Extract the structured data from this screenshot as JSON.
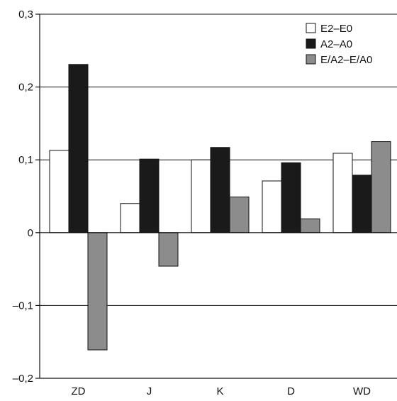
{
  "chart_data": {
    "type": "bar",
    "title": "",
    "xlabel": "",
    "ylabel": "",
    "categories": [
      "ZD",
      "J",
      "K",
      "D",
      "WD"
    ],
    "series": [
      {
        "name": "E2–E0",
        "color": "#ffffff",
        "values": [
          0.113,
          0.04,
          0.1,
          0.071,
          0.109
        ]
      },
      {
        "name": "A2–A0",
        "color": "#1a1a1a",
        "values": [
          0.231,
          0.101,
          0.117,
          0.096,
          0.079
        ]
      },
      {
        "name": "E/A2–E/A0",
        "color": "#8c8c8c",
        "values": [
          -0.161,
          -0.046,
          0.049,
          0.019,
          0.125
        ]
      }
    ],
    "ylim": [
      -0.2,
      0.3
    ],
    "yticks": [
      -0.2,
      -0.1,
      0,
      0.1,
      0.2,
      0.3
    ],
    "ytick_labels": [
      "–0,2",
      "–0,1",
      "0",
      "0,1",
      "0,2",
      "0,3"
    ],
    "grid": "horizontal",
    "legend_position": "top-right"
  }
}
